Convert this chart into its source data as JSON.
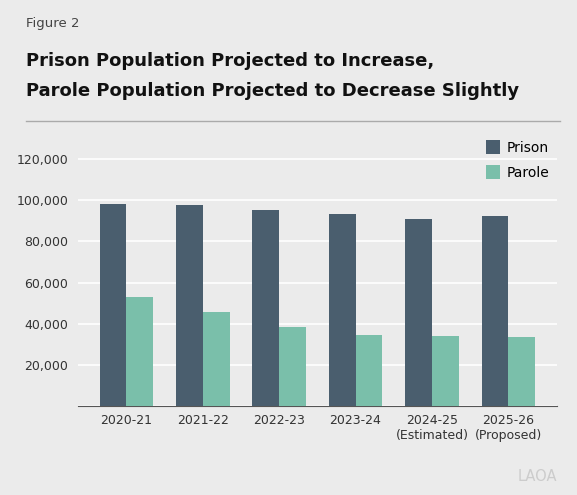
{
  "figure_label": "Figure 2",
  "title_line1": "Prison Population Projected to Increase,",
  "title_line2": "Parole Population Projected to Decrease Slightly",
  "categories": [
    "2020-21",
    "2021-22",
    "2022-23",
    "2023-24",
    "2024-25\n(Estimated)",
    "2025-26\n(Proposed)"
  ],
  "prison_values": [
    98000,
    97800,
    95500,
    93500,
    91000,
    92500
  ],
  "parole_values": [
    53000,
    45500,
    38500,
    34500,
    34000,
    33500
  ],
  "prison_color": "#4a5e6e",
  "parole_color": "#7abfaa",
  "background_color": "#ebebeb",
  "ylim": [
    0,
    130000
  ],
  "yticks": [
    0,
    20000,
    40000,
    60000,
    80000,
    100000,
    120000
  ],
  "legend_labels": [
    "Prison",
    "Parole"
  ],
  "bar_width": 0.35,
  "watermark": "LAOA"
}
